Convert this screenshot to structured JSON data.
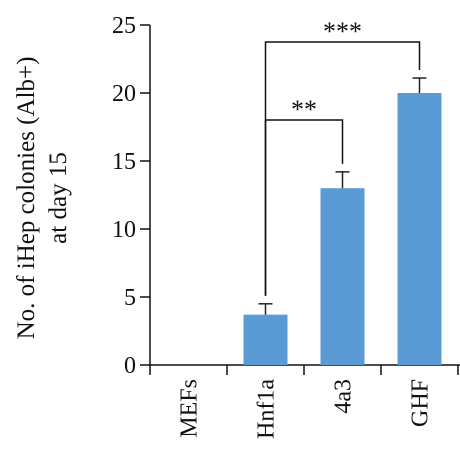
{
  "chart_data": {
    "type": "bar",
    "categories": [
      "MEFs",
      "Hnf1a",
      "4a3",
      "GHF"
    ],
    "values": [
      0,
      3.7,
      13,
      20
    ],
    "errors": [
      0,
      0.8,
      1.2,
      1.1
    ],
    "ylabel_lines": [
      "No. of iHep colonies (Alb+)",
      "at day 15"
    ],
    "ylim": [
      0,
      25
    ],
    "yticks": [
      0,
      5,
      10,
      15,
      20,
      25
    ],
    "ytick_labels": [
      "0",
      "5",
      "10",
      "15",
      "20",
      "25"
    ],
    "bar_color": "#5b9bd5",
    "grid": false,
    "significance": [
      {
        "from": "Hnf1a",
        "to": "4a3",
        "label": "**"
      },
      {
        "from": "Hnf1a",
        "to": "GHF",
        "label": "***"
      }
    ]
  }
}
